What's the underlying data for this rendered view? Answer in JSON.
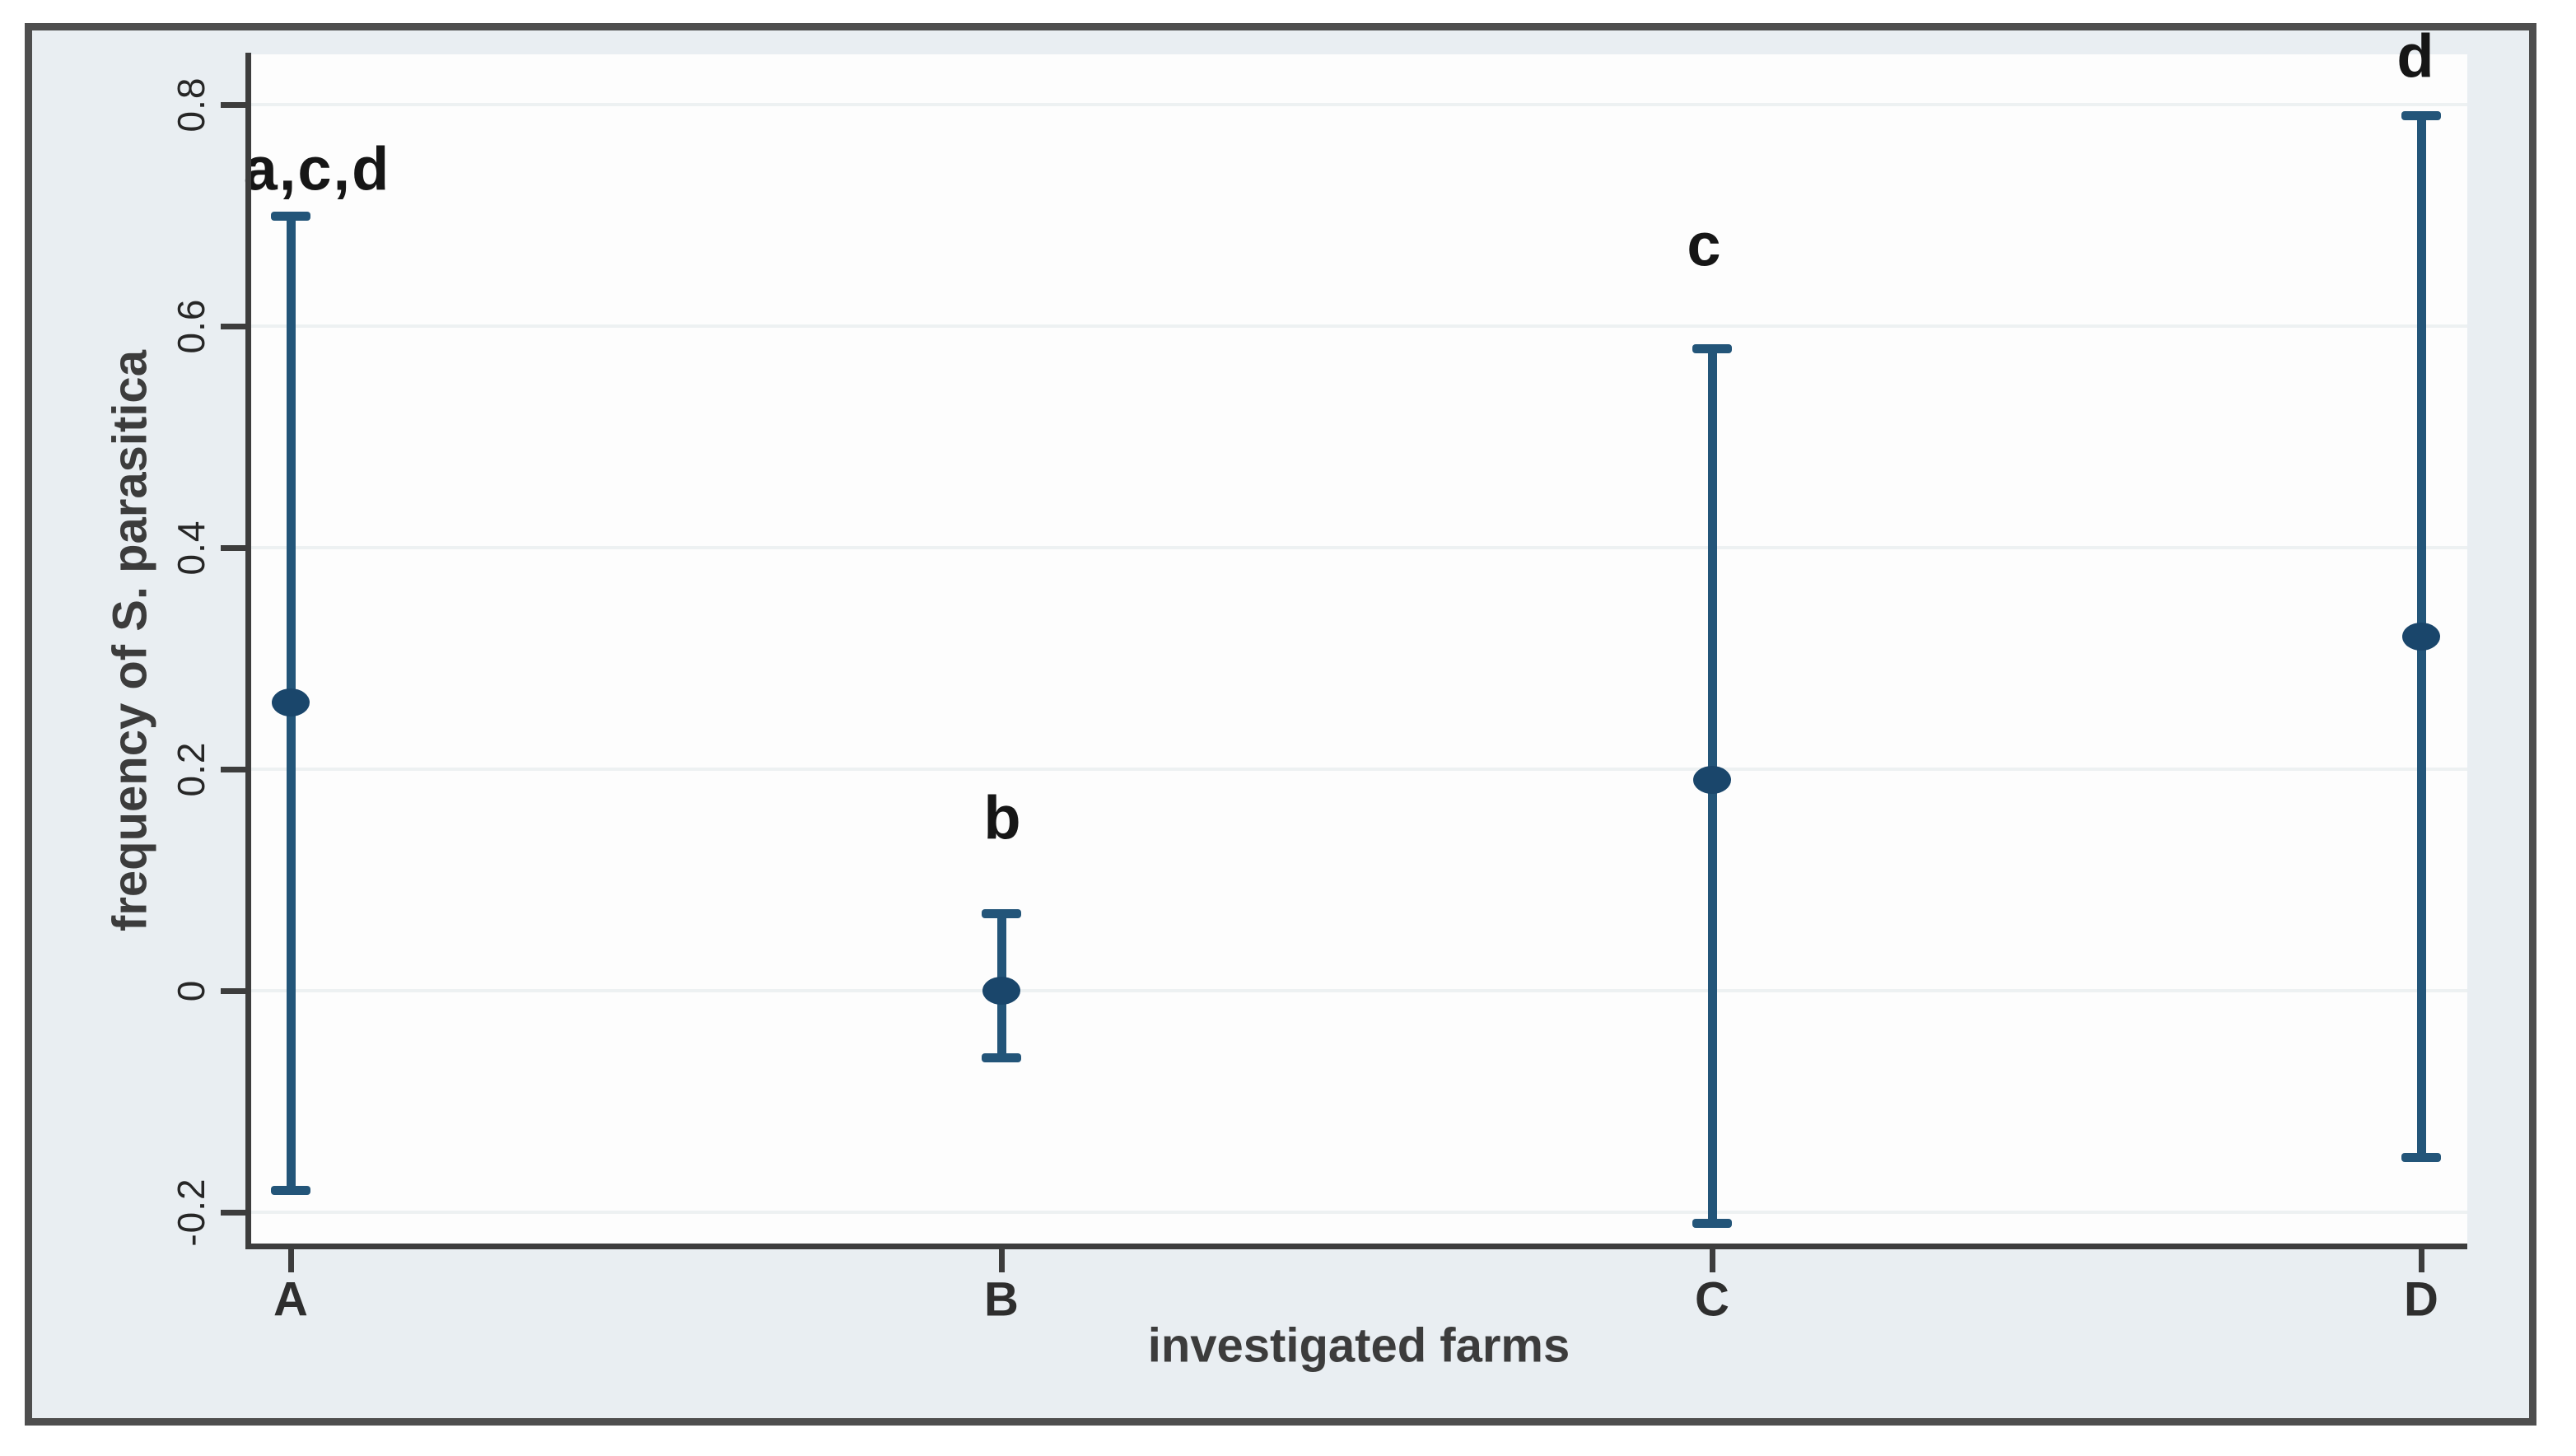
{
  "figure": {
    "colors": {
      "figure_background": "#e9eef2",
      "plot_background": "#fdfdfd",
      "frame_border": "#4e4e4e",
      "axis_line": "#3d3d3d",
      "gridline": "#edf1f2",
      "error_bar": "#235579",
      "marker": "#1a466b"
    }
  },
  "chart_data": {
    "type": "scatter",
    "subtype": "point-estimates-with-95ci-error-bars",
    "title": "",
    "xlabel": "investigated farms",
    "ylabel": "frequency of S. parasitica",
    "ylim": [
      -0.23,
      0.85
    ],
    "grid": "horizontal-only",
    "legend": "none",
    "categories": [
      "A",
      "B",
      "C",
      "D"
    ],
    "y_ticks": [
      {
        "value": 0.8,
        "label": "0.8"
      },
      {
        "value": 0.6,
        "label": "0.6"
      },
      {
        "value": 0.4,
        "label": "0.4"
      },
      {
        "value": 0.2,
        "label": "0.2"
      },
      {
        "value": 0,
        "label": "0"
      },
      {
        "value": -0.2,
        "label": "-0.2"
      }
    ],
    "points": [
      {
        "farm": "A",
        "estimate": 0.26,
        "ci_low": -0.18,
        "ci_high": 0.7,
        "sig_label": "a,c,d"
      },
      {
        "farm": "B",
        "estimate": 0.0,
        "ci_low": -0.06,
        "ci_high": 0.07,
        "sig_label": "b"
      },
      {
        "farm": "C",
        "estimate": 0.19,
        "ci_low": -0.21,
        "ci_high": 0.58,
        "sig_label": "c"
      },
      {
        "farm": "D",
        "estimate": 0.32,
        "ci_low": -0.15,
        "ci_high": 0.79,
        "sig_label": "d"
      }
    ]
  }
}
